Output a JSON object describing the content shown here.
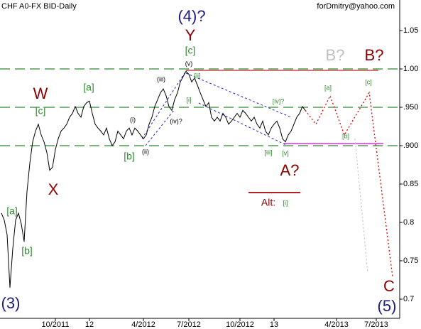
{
  "chart_data": {
    "type": "line",
    "title": "CHF A0-FX BID-Daily",
    "credit": "forDmitry@yahoo.com",
    "xlim": [
      -0.5,
      140.25
    ],
    "xticks": [
      {
        "value": 19,
        "label": "10/2011"
      },
      {
        "value": 31,
        "label": "12"
      },
      {
        "value": 50,
        "label": "4/2012"
      },
      {
        "value": 66,
        "label": "7/2012"
      },
      {
        "value": 84,
        "label": "10/2012"
      },
      {
        "value": 96,
        "label": "13"
      },
      {
        "value": 118,
        "label": "4/2013"
      },
      {
        "value": 132,
        "label": "7/2013"
      }
    ],
    "ylim": [
      0.675,
      1.0898
    ],
    "yticks": [
      0.7,
      0.75,
      0.8,
      0.85,
      {
        "value": 0.9,
        "label": ".900"
      },
      {
        "value": 0.95,
        "label": ".950"
      },
      {
        "value": 1.0,
        "label": "1.00"
      },
      1.05
    ],
    "levels": [
      1.0,
      0.95,
      0.9
    ],
    "series": [
      {
        "color": "#000000",
        "values": [
          0.812,
          0.803,
          0.784,
          0.715,
          0.766,
          0.803,
          0.812,
          0.798,
          0.775,
          0.84,
          0.877,
          0.905,
          0.919,
          0.928,
          0.914,
          0.905,
          0.891,
          0.868,
          0.872,
          0.895,
          0.909,
          0.919,
          0.923,
          0.928,
          0.937,
          0.942,
          0.951,
          0.942,
          0.937,
          0.951,
          0.956,
          0.958,
          0.942,
          0.928,
          0.923,
          0.919,
          0.914,
          0.923,
          0.909,
          0.9,
          0.905,
          0.919,
          0.914,
          0.909,
          0.919,
          0.923,
          0.914,
          0.923,
          0.919,
          0.914,
          0.909,
          0.914,
          0.928,
          0.937,
          0.951,
          0.96,
          0.969,
          0.974,
          0.965,
          0.951,
          0.946,
          0.96,
          0.969,
          0.983,
          0.99,
          0.997,
          0.993,
          0.983,
          0.988,
          0.979,
          0.969,
          0.96,
          0.951,
          0.956,
          0.937,
          0.932,
          0.937,
          0.932,
          0.942,
          0.937,
          0.928,
          0.932,
          0.937,
          0.942,
          0.937,
          0.946,
          0.942,
          0.937,
          0.932,
          0.937,
          0.928,
          0.923,
          0.932,
          0.919,
          0.914,
          0.923,
          0.928,
          0.932,
          0.923,
          0.909,
          0.905,
          0.914,
          0.919,
          0.928,
          0.937,
          0.942,
          0.951,
          0.946
        ]
      },
      {
        "color": "#dd0000",
        "x": [
          107,
          110.75,
          115.75,
          120.75,
          129.5,
          137.75
        ],
        "values": [
          0.946,
          0.928,
          0.965,
          0.914,
          0.969,
          0.729
        ]
      },
      {
        "color": "#c8c8c8",
        "x": [
          124.5,
          129
        ],
        "values": [
          0.909,
          0.734
        ]
      }
    ],
    "annotations": [
      "(4)?",
      "Y",
      "[c]",
      "B?",
      "B?",
      "W",
      "[c]",
      "[a]",
      "(v)",
      "(iii)",
      "[ii]",
      "[i]",
      "(i)",
      "(iv)?",
      "(ii)",
      "[b]",
      "[iv]?",
      "[a]",
      "[c]",
      "[b]",
      "[iii]",
      "[v]",
      "A?",
      "X",
      "Alt:",
      "[i]",
      "[a]",
      "[b]",
      "(3)",
      "(5)",
      "C"
    ]
  }
}
